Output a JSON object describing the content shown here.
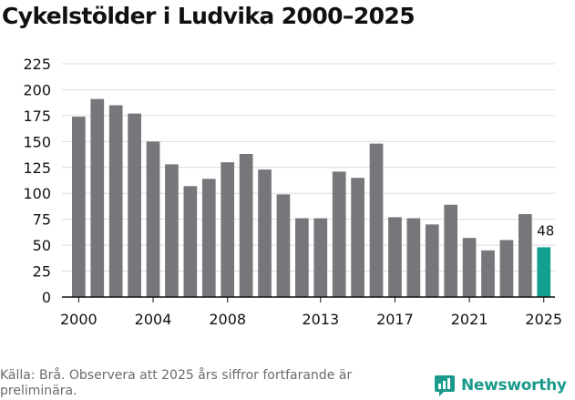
{
  "title": "Cykelstölder i Ludvika 2000–2025",
  "source": "Källa: Brå. Observera att 2025 års siffror fortfarande är preliminära.",
  "brand": {
    "name": "Newsworthy",
    "color": "#1a9a8c"
  },
  "colors": {
    "bar": "#77767b",
    "highlight": "#14a091",
    "grid": "#dcdcdc",
    "axis": "#111111"
  },
  "chart_data": {
    "type": "bar",
    "title": "Cykelstölder i Ludvika 2000–2025",
    "xlabel": "",
    "ylabel": "",
    "ylim": [
      0,
      225
    ],
    "yticks": [
      0,
      25,
      50,
      75,
      100,
      125,
      150,
      175,
      200,
      225
    ],
    "categories": [
      "2000",
      "2001",
      "2002",
      "2003",
      "2004",
      "2005",
      "2006",
      "2007",
      "2008",
      "2009",
      "2010",
      "2011",
      "2012",
      "2013",
      "2014",
      "2015",
      "2016",
      "2017",
      "2018",
      "2019",
      "2020",
      "2021",
      "2022",
      "2023",
      "2024",
      "2025"
    ],
    "xtick_labels": [
      "2000",
      "2004",
      "2008",
      "2013",
      "2017",
      "2021",
      "2025"
    ],
    "values": [
      174,
      191,
      185,
      177,
      150,
      128,
      107,
      114,
      130,
      138,
      123,
      99,
      76,
      76,
      121,
      115,
      148,
      77,
      76,
      70,
      89,
      57,
      45,
      55,
      80,
      48
    ],
    "highlight": {
      "category": "2025",
      "label": "48"
    },
    "grid": true,
    "legend": "none"
  }
}
